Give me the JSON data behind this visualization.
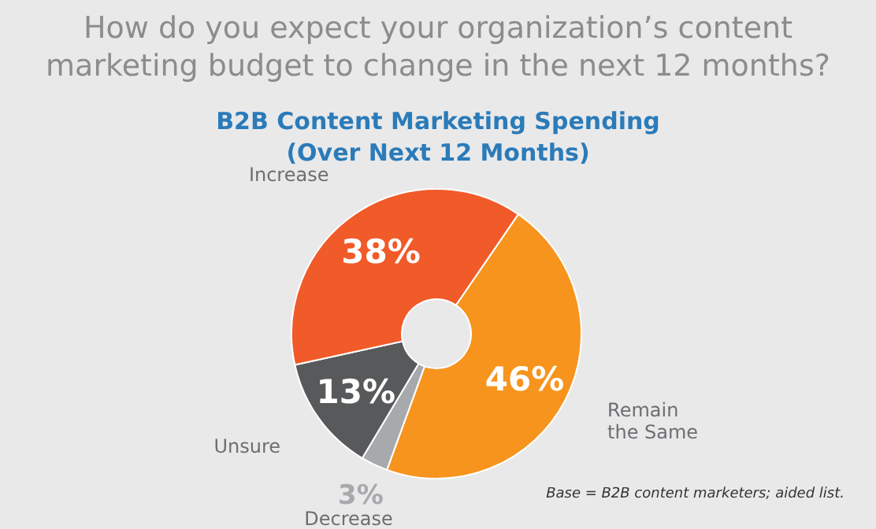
{
  "chart_data": {
    "type": "donut",
    "title": "How do you expect your organization’s content marketing budget to change in the next 12 months?",
    "subtitle": "B2B Content Marketing Spending (Over Next 12 Months)",
    "categories": [
      "Remain the Same",
      "Decrease",
      "Unsure",
      "Increase"
    ],
    "values": [
      46,
      3,
      13,
      38
    ],
    "colors": [
      "#f7941d",
      "#a7a9ac",
      "#58595b",
      "#f15a29"
    ],
    "value_labels": [
      "46%",
      "3%",
      "13%",
      "38%"
    ],
    "annotations": [
      "Base = B2B content marketers; aided list."
    ]
  }
}
